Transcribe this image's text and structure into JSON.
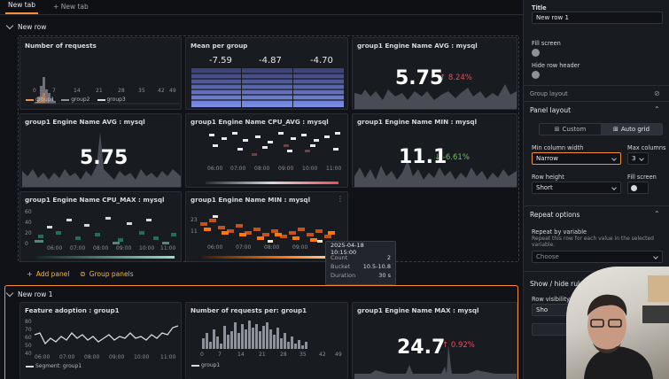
{
  "tabs": [
    "New tab",
    "New tab"
  ],
  "sections": {
    "row1": "New row",
    "row2": "New row 1"
  },
  "panels": {
    "num_requests": {
      "title": "Number of requests",
      "x_ticks": [
        "0",
        "7",
        "14",
        "21",
        "28",
        "35",
        "42",
        "49"
      ],
      "legend": [
        "group1",
        "group2",
        "group3"
      ]
    },
    "mean_group": {
      "title": "Mean per group",
      "values": [
        "-7.59",
        "-4.87",
        "-4.70"
      ]
    },
    "avg_mysql_stat": {
      "title": "group1 Engine Name AVG : mysql",
      "value": "5.75",
      "delta": "8.24%"
    },
    "avg_mysql_2": {
      "title": "group1 Engine Name AVG : mysql",
      "value": "5.75"
    },
    "cpu_avg": {
      "title": "group1 Engine Name CPU_AVG : mysql",
      "x_ticks": [
        "06:00",
        "07:00",
        "08:00",
        "09:00",
        "10:00",
        "11:00"
      ]
    },
    "min_stat": {
      "title": "group1 Engine Name MIN : mysql",
      "value": "11.1",
      "delta": "-6.61%"
    },
    "cpu_max": {
      "title": "group1 Engine Name CPU_MAX : mysql",
      "y_ticks": [
        "60",
        "40",
        "20",
        "0"
      ],
      "x_ticks": [
        "06:00",
        "07:00",
        "08:00",
        "09:00",
        "10:00",
        "11:00"
      ]
    },
    "min_heat": {
      "title": "group1 Engine Name MIN : mysql",
      "y_ticks": [
        "23",
        "11"
      ],
      "x_ticks": [
        "06:00",
        "07:00",
        "08:00",
        "09:00"
      ]
    },
    "feature": {
      "title": "Feature adoption : group1",
      "y_ticks": [
        "80",
        "70",
        "60",
        "50",
        "40"
      ],
      "x_ticks": [
        "06:00",
        "07:00",
        "08:00",
        "09:00",
        "10:00",
        "11:00"
      ],
      "legend": "Segment: group1"
    },
    "req_per": {
      "title": "Number of requests per: group1",
      "x_ticks": [
        "0",
        "7",
        "14",
        "21",
        "28",
        "35",
        "42",
        "49"
      ],
      "legend": "group1"
    },
    "max_stat": {
      "title": "group1 Engine Name MAX : mysql",
      "value": "24.7",
      "delta": "0.92%"
    }
  },
  "actions": {
    "add_panel": "Add panel",
    "group_panels": "Group panels"
  },
  "tooltip": {
    "time": "2025-04-18 10:15:00",
    "rows": [
      {
        "k": "Count",
        "v": "2"
      },
      {
        "k": "Bucket",
        "v": "10.5-10.8"
      },
      {
        "k": "Duration",
        "v": "30 s"
      }
    ]
  },
  "pane": {
    "title_label": "Title",
    "title_value": "New row 1",
    "fill_screen": "Fill screen",
    "hide_header": "Hide row header",
    "group_layout": "Group layout",
    "panel_layout": "Panel layout",
    "custom": "Custom",
    "auto_grid": "Auto grid",
    "min_col_width": "Min column width",
    "min_col_value": "Narrow",
    "max_columns": "Max columns",
    "max_columns_value": "3",
    "row_height": "Row height",
    "row_height_value": "Short",
    "fill_screen2": "Fill screen",
    "repeat_options": "Repeat options",
    "repeat_by_var": "Repeat by variable",
    "repeat_desc": "Repeat this row for each value in the selected variable.",
    "choose": "Choose",
    "show_hide": "Show / hide rules",
    "row_visibility": "Row visibility",
    "show_btn": "Sho"
  },
  "colors": {
    "accent": "#f58f3b",
    "stat_red": "#f2495c",
    "stat_green": "#73bf69",
    "heat_orange": "#ff780a",
    "bar_blue": "#5f77d6"
  }
}
